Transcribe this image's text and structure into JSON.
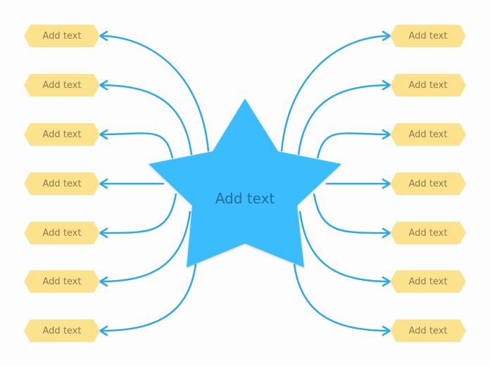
{
  "colors": {
    "star": "#3bbcfd",
    "connector": "#2aa8e8",
    "node_fill": "#fde28d",
    "node_text": "#8c7b4c",
    "center_text": "#1f6f9c"
  },
  "center": {
    "label": "Add text",
    "shape": "star"
  },
  "left_nodes": [
    {
      "label": "Add text"
    },
    {
      "label": "Add text"
    },
    {
      "label": "Add text"
    },
    {
      "label": "Add text"
    },
    {
      "label": "Add text"
    },
    {
      "label": "Add text"
    },
    {
      "label": "Add text"
    }
  ],
  "right_nodes": [
    {
      "label": "Add text"
    },
    {
      "label": "Add text"
    },
    {
      "label": "Add text"
    },
    {
      "label": "Add text"
    },
    {
      "label": "Add text"
    },
    {
      "label": "Add text"
    },
    {
      "label": "Add text"
    }
  ]
}
